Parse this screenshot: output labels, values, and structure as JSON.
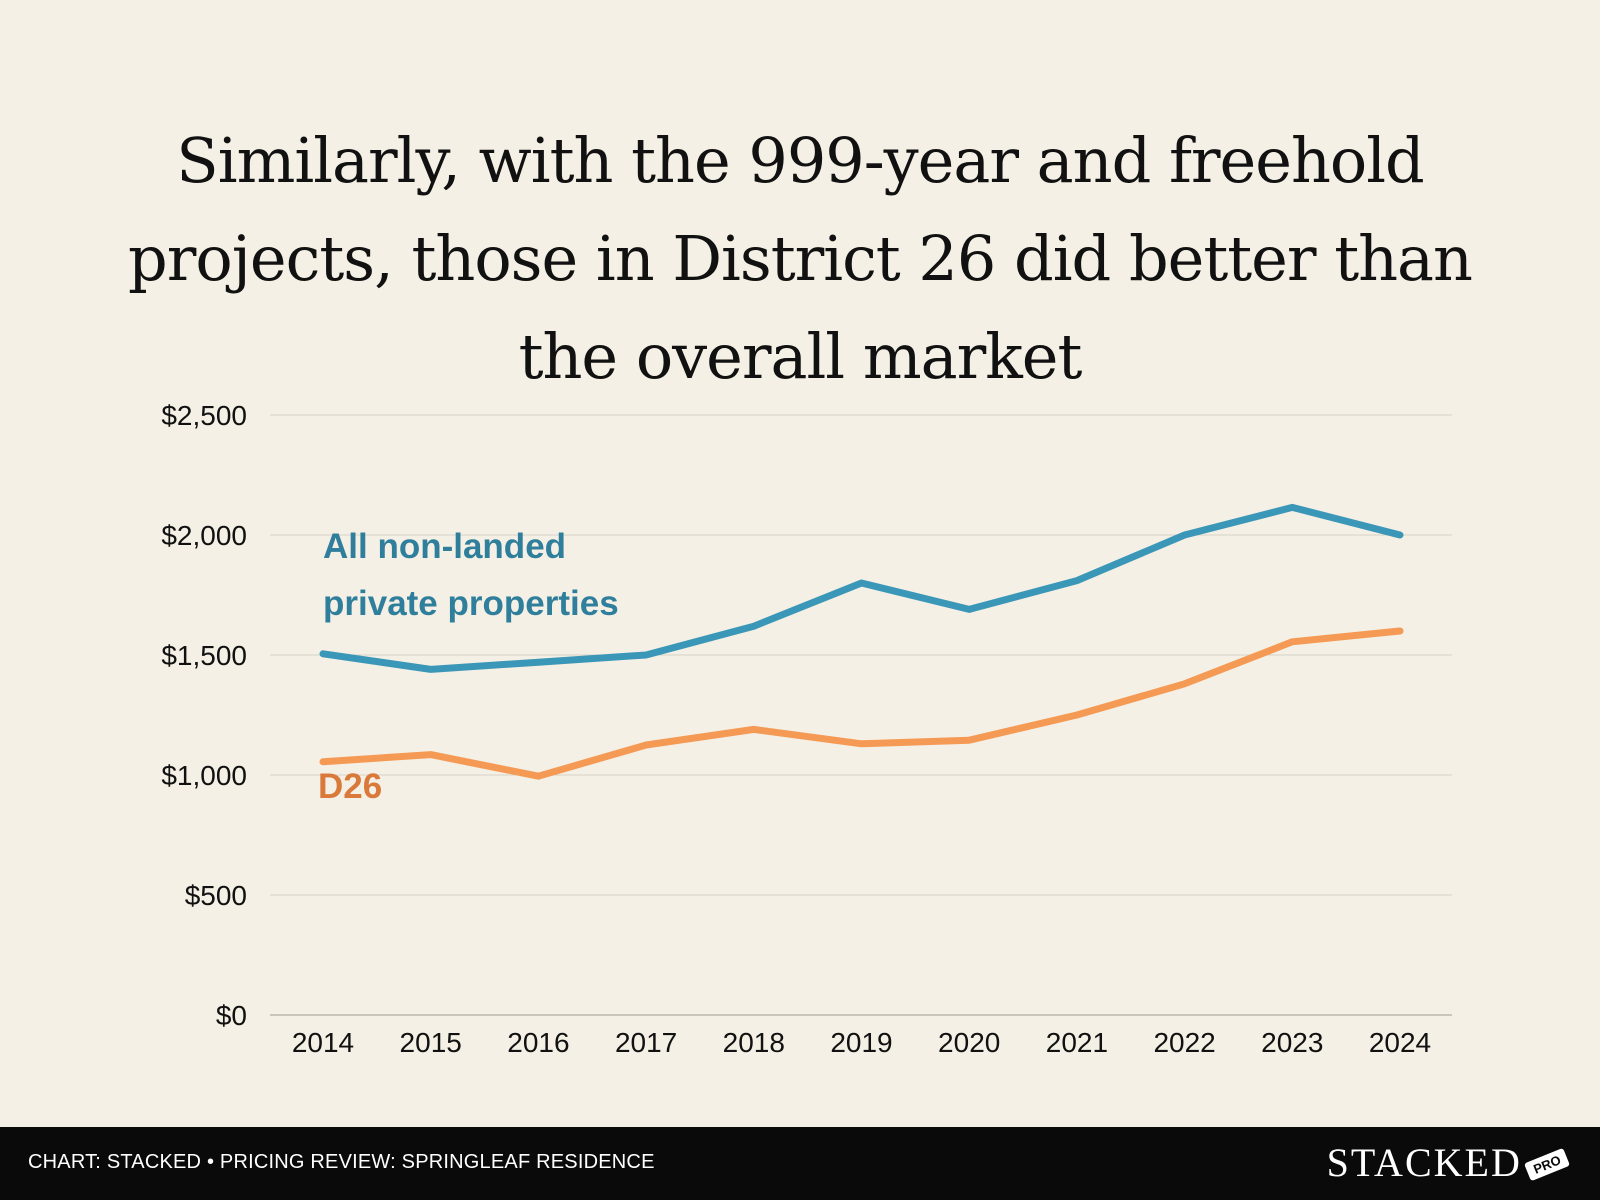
{
  "chart_data": {
    "type": "line",
    "title": "Similarly, with the 999-year and freehold projects, those in District 26 did better than the overall market",
    "xlabel": "",
    "ylabel": "",
    "categories": [
      "2014",
      "2015",
      "2016",
      "2017",
      "2018",
      "2019",
      "2020",
      "2021",
      "2022",
      "2023",
      "2024"
    ],
    "ylim": [
      0,
      2500
    ],
    "y_ticks": [
      0,
      500,
      1000,
      1500,
      2000,
      2500
    ],
    "y_tick_labels": [
      "$0",
      "$500",
      "$1,000",
      "$1,500",
      "$2,000",
      "$2,500"
    ],
    "grid": true,
    "series": [
      {
        "name": "All non-landed private properties",
        "label_lines": [
          "All non-landed",
          "private properties"
        ],
        "color": "#3b97b8",
        "label_color": "#2f7f9c",
        "values": [
          1505,
          1440,
          1470,
          1500,
          1620,
          1800,
          1690,
          1810,
          2000,
          2115,
          2000
        ]
      },
      {
        "name": "D26",
        "label_lines": [
          "D26"
        ],
        "color": "#f59a55",
        "label_color": "#d97a3a",
        "values": [
          1055,
          1085,
          995,
          1125,
          1190,
          1130,
          1145,
          1250,
          1380,
          1555,
          1600
        ]
      }
    ]
  },
  "footer": {
    "source": "CHART: STACKED • PRICING REVIEW: SPRINGLEAF RESIDENCE",
    "brand": "STACKED",
    "badge": "PRO"
  },
  "colors": {
    "background": "#f5f0e5",
    "grid": "#d6d2c6",
    "footer": "#0a0a0a"
  }
}
